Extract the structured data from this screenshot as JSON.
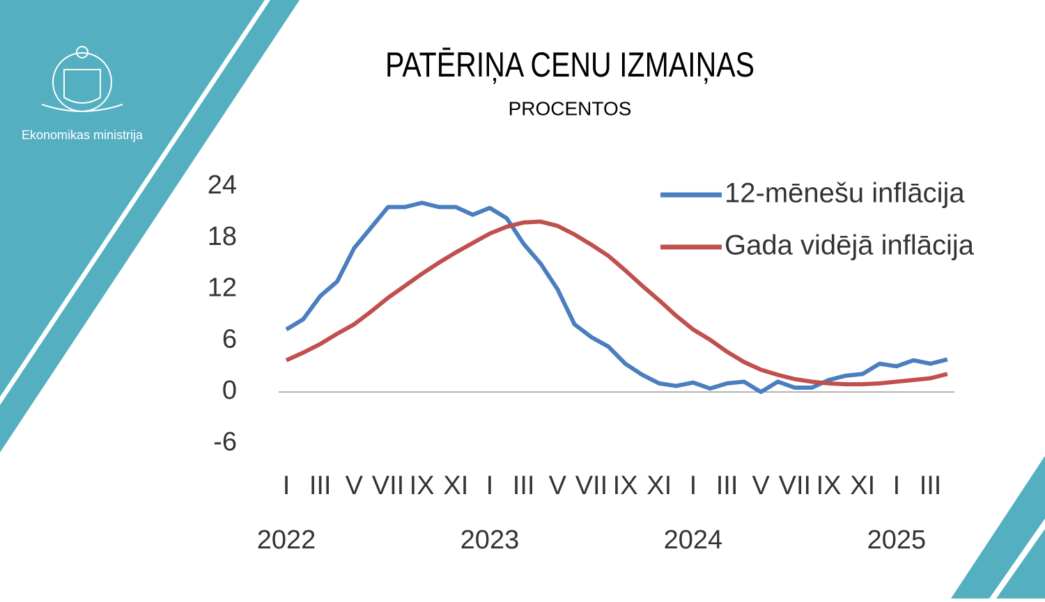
{
  "organization": "Ekonomikas ministrija",
  "chart_data": {
    "type": "line",
    "title": "PATĒRIŅA CENU IZMAIŅAS",
    "subtitle": "PROCENTOS",
    "categories": [
      "I",
      null,
      "III",
      null,
      "V",
      null,
      "VII",
      null,
      "IX",
      null,
      "XI",
      null,
      "I",
      null,
      "III",
      null,
      "V",
      null,
      "VII",
      null,
      "IX",
      null,
      "XI",
      null,
      "I",
      null,
      "III",
      null,
      "V",
      null,
      "VII",
      null,
      "IX",
      null,
      "XI",
      null,
      "I",
      null,
      "III",
      null
    ],
    "years": [
      "2022",
      "2023",
      "2024",
      "2025"
    ],
    "series": [
      {
        "name": "12-mēnešu inflācija",
        "color": "#4a7ebf",
        "values": [
          7.3,
          8.5,
          11.2,
          12.9,
          16.8,
          19.2,
          21.6,
          21.6,
          22.1,
          21.6,
          21.6,
          20.7,
          21.5,
          20.3,
          17.3,
          15.0,
          12.0,
          7.9,
          6.4,
          5.3,
          3.3,
          2.0,
          1.0,
          0.7,
          1.1,
          0.4,
          1.0,
          1.2,
          0.0,
          1.2,
          0.5,
          0.5,
          1.4,
          1.9,
          2.1,
          3.3,
          3.0,
          3.7,
          3.3,
          3.8
        ]
      },
      {
        "name": "Gada vidējā inflācija",
        "color": "#c0504d",
        "values": [
          3.7,
          4.6,
          5.6,
          6.8,
          7.9,
          9.4,
          11.0,
          12.4,
          13.8,
          15.1,
          16.3,
          17.4,
          18.5,
          19.3,
          19.8,
          19.9,
          19.4,
          18.4,
          17.2,
          15.9,
          14.2,
          12.4,
          10.7,
          8.9,
          7.3,
          6.1,
          4.7,
          3.5,
          2.6,
          2.0,
          1.5,
          1.2,
          1.0,
          0.9,
          0.9,
          1.0,
          1.2,
          1.4,
          1.6,
          2.1
        ]
      }
    ],
    "ylim": [
      -6,
      24
    ],
    "yticks": [
      -6,
      0,
      6,
      12,
      18,
      24
    ],
    "grid": false,
    "legend": "upper right"
  }
}
